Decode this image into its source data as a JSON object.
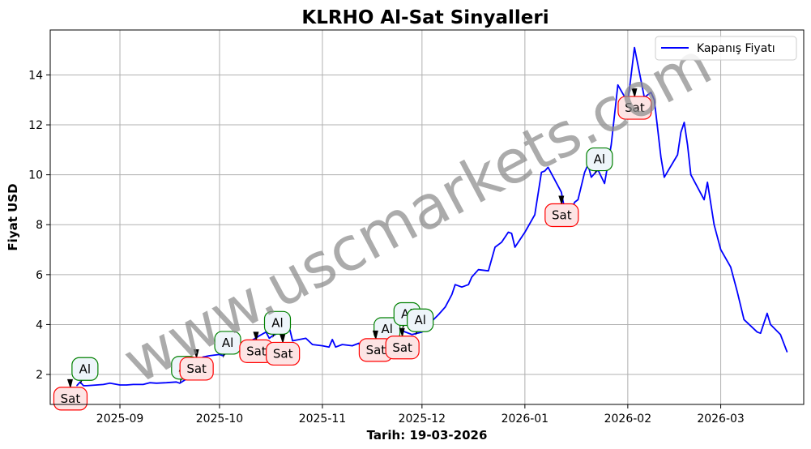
{
  "chart_data": {
    "type": "line",
    "title": "KLRHO Al-Sat Sinyalleri",
    "xlabel": "Tarih: 19-03-2026",
    "ylabel": "Fiyat USD",
    "watermark": "www.uscmarkets.com",
    "legend": {
      "position": "top-right",
      "entries": [
        "Kapanış Fiyatı"
      ]
    },
    "grid": true,
    "xlim": [
      "2025-08-11",
      "2026-03-26"
    ],
    "ylim": [
      0.8,
      15.8
    ],
    "x_ticks": [
      "2025-09-01",
      "2025-10-01",
      "2025-11-01",
      "2025-12-01",
      "2026-01-01",
      "2026-02-01",
      "2026-03-01"
    ],
    "x_tick_labels": [
      "2025-09",
      "2025-10",
      "2025-11",
      "2025-12",
      "2026-01",
      "2026-02",
      "2026-03"
    ],
    "y_ticks": [
      2,
      4,
      6,
      8,
      10,
      12,
      14
    ],
    "y_tick_labels": [
      "2",
      "4",
      "6",
      "8",
      "10",
      "12",
      "14"
    ],
    "series": [
      {
        "name": "Kapanış Fiyatı",
        "color": "#0000ff",
        "points": [
          [
            "2025-08-19",
            1.55
          ],
          [
            "2025-08-20",
            1.7
          ],
          [
            "2025-08-21",
            1.55
          ],
          [
            "2025-08-22",
            1.55
          ],
          [
            "2025-08-25",
            1.58
          ],
          [
            "2025-08-27",
            1.6
          ],
          [
            "2025-08-29",
            1.65
          ],
          [
            "2025-09-01",
            1.58
          ],
          [
            "2025-09-03",
            1.58
          ],
          [
            "2025-09-05",
            1.6
          ],
          [
            "2025-09-08",
            1.6
          ],
          [
            "2025-09-10",
            1.67
          ],
          [
            "2025-09-12",
            1.65
          ],
          [
            "2025-09-15",
            1.67
          ],
          [
            "2025-09-18",
            1.7
          ],
          [
            "2025-09-19",
            1.65
          ],
          [
            "2025-09-22",
            1.9
          ],
          [
            "2025-09-24",
            2.2
          ],
          [
            "2025-09-26",
            2.7
          ],
          [
            "2025-09-28",
            2.75
          ],
          [
            "2025-10-01",
            2.8
          ],
          [
            "2025-10-02",
            2.75
          ],
          [
            "2025-10-03",
            2.85
          ],
          [
            "2025-10-06",
            2.9
          ],
          [
            "2025-10-08",
            3.0
          ],
          [
            "2025-10-10",
            3.3
          ],
          [
            "2025-10-13",
            3.55
          ],
          [
            "2025-10-15",
            3.7
          ],
          [
            "2025-10-16",
            3.45
          ],
          [
            "2025-10-17",
            3.55
          ],
          [
            "2025-10-20",
            3.75
          ],
          [
            "2025-10-21",
            3.9
          ],
          [
            "2025-10-22",
            3.9
          ],
          [
            "2025-10-23",
            3.35
          ],
          [
            "2025-10-27",
            3.45
          ],
          [
            "2025-10-29",
            3.2
          ],
          [
            "2025-11-01",
            3.15
          ],
          [
            "2025-11-03",
            3.1
          ],
          [
            "2025-11-04",
            3.4
          ],
          [
            "2025-11-05",
            3.1
          ],
          [
            "2025-11-07",
            3.2
          ],
          [
            "2025-11-10",
            3.15
          ],
          [
            "2025-11-12",
            3.25
          ],
          [
            "2025-11-13",
            3.0
          ],
          [
            "2025-11-15",
            3.1
          ],
          [
            "2025-11-17",
            3.2
          ],
          [
            "2025-11-19",
            3.4
          ],
          [
            "2025-11-21",
            3.7
          ],
          [
            "2025-11-23",
            3.9
          ],
          [
            "2025-11-25",
            3.75
          ],
          [
            "2025-11-28",
            3.6
          ],
          [
            "2025-12-01",
            3.7
          ],
          [
            "2025-12-03",
            4.0
          ],
          [
            "2025-12-06",
            4.4
          ],
          [
            "2025-12-08",
            4.7
          ],
          [
            "2025-12-10",
            5.2
          ],
          [
            "2025-12-11",
            5.6
          ],
          [
            "2025-12-13",
            5.5
          ],
          [
            "2025-12-15",
            5.6
          ],
          [
            "2025-12-16",
            5.9
          ],
          [
            "2025-12-18",
            6.2
          ],
          [
            "2025-12-21",
            6.15
          ],
          [
            "2025-12-23",
            7.1
          ],
          [
            "2025-12-25",
            7.3
          ],
          [
            "2025-12-27",
            7.7
          ],
          [
            "2025-12-28",
            7.65
          ],
          [
            "2025-12-29",
            7.1
          ],
          [
            "2026-01-01",
            7.7
          ],
          [
            "2026-01-04",
            8.4
          ],
          [
            "2026-01-06",
            10.1
          ],
          [
            "2026-01-07",
            10.15
          ],
          [
            "2026-01-08",
            10.3
          ],
          [
            "2026-01-12",
            9.3
          ],
          [
            "2026-01-13",
            8.6
          ],
          [
            "2026-01-14",
            8.3
          ],
          [
            "2026-01-16",
            8.9
          ],
          [
            "2026-01-17",
            9.0
          ],
          [
            "2026-01-19",
            10.1
          ],
          [
            "2026-01-20",
            10.4
          ],
          [
            "2026-01-21",
            9.9
          ],
          [
            "2026-01-23",
            10.2
          ],
          [
            "2026-01-25",
            9.65
          ],
          [
            "2026-01-27",
            11.2
          ],
          [
            "2026-01-29",
            13.6
          ],
          [
            "2026-02-01",
            12.9
          ],
          [
            "2026-02-03",
            15.1
          ],
          [
            "2026-02-06",
            13.1
          ],
          [
            "2026-02-08",
            13.3
          ],
          [
            "2026-02-09",
            13.0
          ],
          [
            "2026-02-11",
            10.7
          ],
          [
            "2026-02-12",
            9.9
          ],
          [
            "2026-02-16",
            10.8
          ],
          [
            "2026-02-17",
            11.7
          ],
          [
            "2026-02-18",
            12.1
          ],
          [
            "2026-02-19",
            11.2
          ],
          [
            "2026-02-20",
            10.0
          ],
          [
            "2026-02-24",
            9.0
          ],
          [
            "2026-02-25",
            9.7
          ],
          [
            "2026-02-27",
            8.0
          ],
          [
            "2026-03-01",
            7.0
          ],
          [
            "2026-03-04",
            6.3
          ],
          [
            "2026-03-06",
            5.3
          ],
          [
            "2026-03-08",
            4.2
          ],
          [
            "2026-03-12",
            3.7
          ],
          [
            "2026-03-13",
            3.65
          ],
          [
            "2026-03-15",
            4.45
          ],
          [
            "2026-03-16",
            4.0
          ],
          [
            "2026-03-19",
            3.6
          ],
          [
            "2026-03-21",
            2.9
          ]
        ]
      }
    ],
    "signals": [
      {
        "type": "buy",
        "label": "Al",
        "date": "2025-08-20",
        "price": 1.7
      },
      {
        "type": "sell",
        "label": "Sat",
        "date": "2025-08-21",
        "price": 1.55
      },
      {
        "type": "buy",
        "label": "Al",
        "date": "2025-09-19",
        "price": 1.75
      },
      {
        "type": "sell",
        "label": "Sat",
        "date": "2025-09-28",
        "price": 2.75
      },
      {
        "type": "buy",
        "label": "Al",
        "date": "2025-10-02",
        "price": 2.75
      },
      {
        "type": "buy",
        "label": "Al",
        "date": "2025-10-17",
        "price": 3.55
      },
      {
        "type": "sell",
        "label": "Sat",
        "date": "2025-10-16",
        "price": 3.45
      },
      {
        "type": "sell",
        "label": "Sat",
        "date": "2025-10-24",
        "price": 3.35
      },
      {
        "type": "buy",
        "label": "Al",
        "date": "2025-11-19",
        "price": 3.3
      },
      {
        "type": "sell",
        "label": "Sat",
        "date": "2025-11-21",
        "price": 3.5
      },
      {
        "type": "buy",
        "label": "Al",
        "date": "2025-11-25",
        "price": 3.9
      },
      {
        "type": "buy",
        "label": "Al",
        "date": "2025-11-29",
        "price": 3.65
      },
      {
        "type": "sell",
        "label": "Sat",
        "date": "2025-11-29",
        "price": 3.6
      },
      {
        "type": "sell",
        "label": "Sat",
        "date": "2026-01-16",
        "price": 8.9
      },
      {
        "type": "buy",
        "label": "Al",
        "date": "2026-01-22",
        "price": 10.1
      },
      {
        "type": "sell",
        "label": "Sat",
        "date": "2026-02-07",
        "price": 13.2
      }
    ],
    "colors": {
      "line": "#0000ff",
      "buy_border": "#008000",
      "buy_fill": "#eef5fa",
      "sell_border": "#ff0000",
      "sell_fill": "#fde4e4",
      "grid": "#b0b0b0",
      "marker": "#000000"
    }
  }
}
